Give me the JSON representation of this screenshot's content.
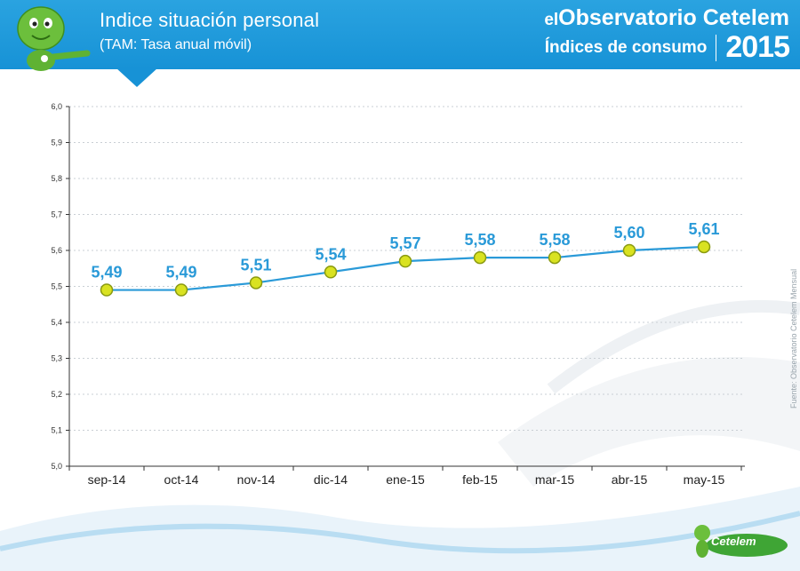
{
  "header": {
    "title": "Indice situación personal",
    "subtitle": "(TAM: Tasa anual móvil)",
    "brand_prefix": "el",
    "brand_name": "Observatorio Cetelem",
    "brand_subtitle": "Índices de consumo",
    "brand_year": "2015"
  },
  "source_note": "Fuente: Observatorio Cetelem Mensual",
  "logo_text": "Cetelem",
  "colors": {
    "header_blue": "#1792d6",
    "line": "#2a9ad8",
    "marker_fill": "#d9e221",
    "marker_stroke": "#8a9a10",
    "data_label": "#2a9ad8"
  },
  "chart_data": {
    "type": "line",
    "categories": [
      "sep-14",
      "oct-14",
      "nov-14",
      "dic-14",
      "ene-15",
      "feb-15",
      "mar-15",
      "abr-15",
      "may-15"
    ],
    "values": [
      5.49,
      5.49,
      5.51,
      5.54,
      5.57,
      5.58,
      5.58,
      5.6,
      5.61
    ],
    "data_labels": [
      "5,49",
      "5,49",
      "5,51",
      "5,54",
      "5,57",
      "5,58",
      "5,58",
      "5,60",
      "5,61"
    ],
    "yticks": [
      5.0,
      5.1,
      5.2,
      5.3,
      5.4,
      5.5,
      5.6,
      5.7,
      5.8,
      5.9,
      6.0
    ],
    "ytick_labels": [
      "5,0",
      "5,1",
      "5,2",
      "5,3",
      "5,4",
      "5,5",
      "5,6",
      "5,7",
      "5,8",
      "5,9",
      "6,0"
    ],
    "ylim": [
      5.0,
      6.0
    ],
    "grid": true,
    "legend": "none"
  }
}
